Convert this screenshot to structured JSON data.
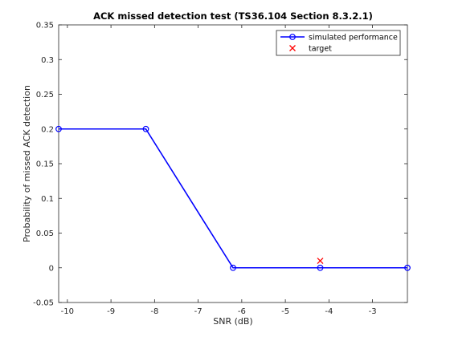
{
  "chart_data": {
    "type": "line",
    "title": "ACK missed detection test (TS36.104 Section 8.3.2.1)",
    "xlabel": "SNR (dB)",
    "ylabel": "Probability of missed ACK detection",
    "xlim": [
      -10.2,
      -2.2
    ],
    "ylim": [
      -0.05,
      0.35
    ],
    "xticks": [
      -10,
      -9,
      -8,
      -7,
      -6,
      -5,
      -4,
      -3
    ],
    "xtick_labels": [
      "-10",
      "-9",
      "-8",
      "-7",
      "-6",
      "-5",
      "-4",
      "-3"
    ],
    "yticks": [
      -0.05,
      0,
      0.05,
      0.1,
      0.15,
      0.2,
      0.25,
      0.3,
      0.35
    ],
    "ytick_labels": [
      "-0.05",
      "0",
      "0.05",
      "0.1",
      "0.15",
      "0.2",
      "0.25",
      "0.3",
      "0.35"
    ],
    "grid": false,
    "legend_position": "top-right",
    "series": [
      {
        "name": "simulated performance",
        "kind": "line",
        "marker": "circle",
        "color": "#0000ff",
        "x": [
          -10.2,
          -8.2,
          -6.2,
          -4.2,
          -2.2
        ],
        "y": [
          0.2,
          0.2,
          0,
          0,
          0
        ]
      },
      {
        "name": "target",
        "kind": "scatter",
        "marker": "x",
        "color": "#ff0000",
        "x": [
          -4.2
        ],
        "y": [
          0.01
        ]
      }
    ]
  }
}
